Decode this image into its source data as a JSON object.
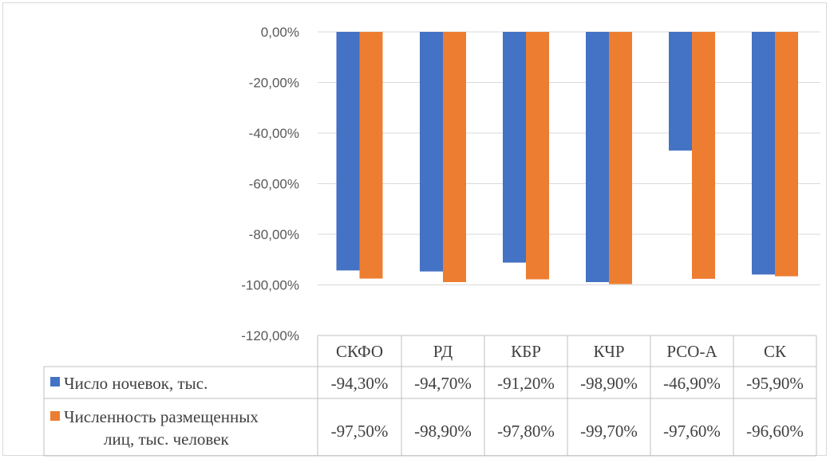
{
  "chart_data": {
    "type": "bar",
    "categories": [
      "СКФО",
      "РД",
      "КБР",
      "КЧР",
      "РСО-А",
      "СК"
    ],
    "series": [
      {
        "name": "Число ночевок, тыс.",
        "color": "#4472c4",
        "values": [
          -94.3,
          -94.7,
          -91.2,
          -98.9,
          -46.9,
          -95.9
        ],
        "labels": [
          "-94,30%",
          "-94,70%",
          "-91,20%",
          "-98,90%",
          "-46,90%",
          "-95,90%"
        ]
      },
      {
        "name": "Численность размещенных лиц, тыс. человек",
        "name_lines": [
          "Численность размещенных",
          "лиц, тыс. человек"
        ],
        "color": "#ed7d31",
        "values": [
          -97.5,
          -98.9,
          -97.8,
          -99.7,
          -97.6,
          -96.6
        ],
        "labels": [
          "-97,50%",
          "-98,90%",
          "-97,80%",
          "-99,70%",
          "-97,60%",
          "-96,60%"
        ]
      }
    ],
    "ylim": [
      -120,
      0
    ],
    "yticks": [
      0,
      -20,
      -40,
      -60,
      -80,
      -100,
      -120
    ],
    "ytick_labels": [
      "0,00%",
      "-20,00%",
      "-40,00%",
      "-60,00%",
      "-80,00%",
      "-100,00%",
      "-120,00%"
    ],
    "grid": true,
    "data_table": true
  }
}
